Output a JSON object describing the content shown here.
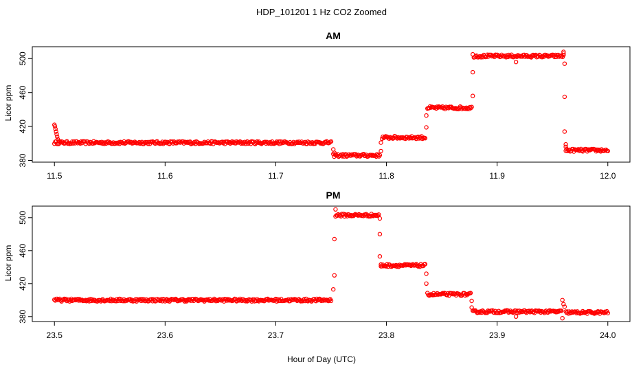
{
  "figure_title": "HDP_101201  1 Hz CO2 Zoomed",
  "shared_xlabel": "Hour of Day (UTC)",
  "colors": {
    "points": "#ff0000",
    "axes": "#000000",
    "background": "#ffffff"
  },
  "chart_data": [
    {
      "type": "scatter",
      "title": "AM",
      "xlabel": "",
      "ylabel": "Licor ppm",
      "xlim": [
        11.48,
        12.02
      ],
      "ylim": [
        378,
        514
      ],
      "xticks": [
        11.5,
        11.6,
        11.7,
        11.8,
        11.9,
        12.0
      ],
      "xtick_labels": [
        "11.5",
        "11.6",
        "11.7",
        "11.8",
        "11.9",
        "12.0"
      ],
      "yticks": [
        380,
        420,
        460,
        500
      ],
      "ytick_labels": [
        "380",
        "420",
        "460",
        "500"
      ],
      "grid": false,
      "segments": [
        {
          "x_start": 11.5,
          "x_end": 11.75,
          "y": 401
        },
        {
          "x_start": 11.752,
          "x_end": 11.794,
          "y": 386
        },
        {
          "x_start": 11.796,
          "x_end": 11.835,
          "y": 407
        },
        {
          "x_start": 11.837,
          "x_end": 11.877,
          "y": 442
        },
        {
          "x_start": 11.879,
          "x_end": 11.96,
          "y": 503
        },
        {
          "x_start": 11.962,
          "x_end": 12.0,
          "y": 392
        }
      ],
      "points": [
        [
          11.5,
          422
        ],
        [
          11.5005,
          420
        ],
        [
          11.501,
          417
        ],
        [
          11.5015,
          414
        ],
        [
          11.502,
          411
        ],
        [
          11.5025,
          408
        ],
        [
          11.503,
          405
        ],
        [
          11.504,
          403
        ],
        [
          11.752,
          393
        ],
        [
          11.753,
          389
        ],
        [
          11.795,
          391
        ],
        [
          11.795,
          401
        ],
        [
          11.836,
          419
        ],
        [
          11.836,
          433
        ],
        [
          11.878,
          456
        ],
        [
          11.878,
          484
        ],
        [
          11.878,
          505
        ],
        [
          11.917,
          496
        ],
        [
          11.96,
          508
        ],
        [
          11.96,
          506
        ],
        [
          11.961,
          494
        ],
        [
          11.961,
          455
        ],
        [
          11.961,
          414
        ],
        [
          11.962,
          399
        ],
        [
          11.962,
          396
        ]
      ]
    },
    {
      "type": "scatter",
      "title": "PM",
      "xlabel": "Hour of Day (UTC)",
      "ylabel": "Licor ppm",
      "xlim": [
        23.48,
        24.02
      ],
      "ylim": [
        374,
        514
      ],
      "xticks": [
        23.5,
        23.6,
        23.7,
        23.8,
        23.9,
        24.0
      ],
      "xtick_labels": [
        "23.5",
        "23.6",
        "23.7",
        "23.8",
        "23.9",
        "24.0"
      ],
      "yticks": [
        380,
        420,
        460,
        500
      ],
      "ytick_labels": [
        "380",
        "420",
        "460",
        "500"
      ],
      "grid": false,
      "segments": [
        {
          "x_start": 23.5,
          "x_end": 23.75,
          "y": 400
        },
        {
          "x_start": 23.754,
          "x_end": 23.793,
          "y": 503
        },
        {
          "x_start": 23.795,
          "x_end": 23.835,
          "y": 442
        },
        {
          "x_start": 23.837,
          "x_end": 23.876,
          "y": 407
        },
        {
          "x_start": 23.878,
          "x_end": 23.958,
          "y": 386
        },
        {
          "x_start": 23.962,
          "x_end": 24.0,
          "y": 385
        }
      ],
      "points": [
        [
          23.752,
          413
        ],
        [
          23.753,
          430
        ],
        [
          23.753,
          474
        ],
        [
          23.754,
          510
        ],
        [
          23.794,
          499
        ],
        [
          23.794,
          480
        ],
        [
          23.794,
          453
        ],
        [
          23.795,
          441
        ],
        [
          23.836,
          432
        ],
        [
          23.836,
          420
        ],
        [
          23.877,
          399
        ],
        [
          23.877,
          391
        ],
        [
          23.917,
          380
        ],
        [
          23.959,
          378
        ],
        [
          23.959,
          400
        ],
        [
          23.96,
          395
        ],
        [
          23.961,
          392
        ]
      ]
    }
  ]
}
